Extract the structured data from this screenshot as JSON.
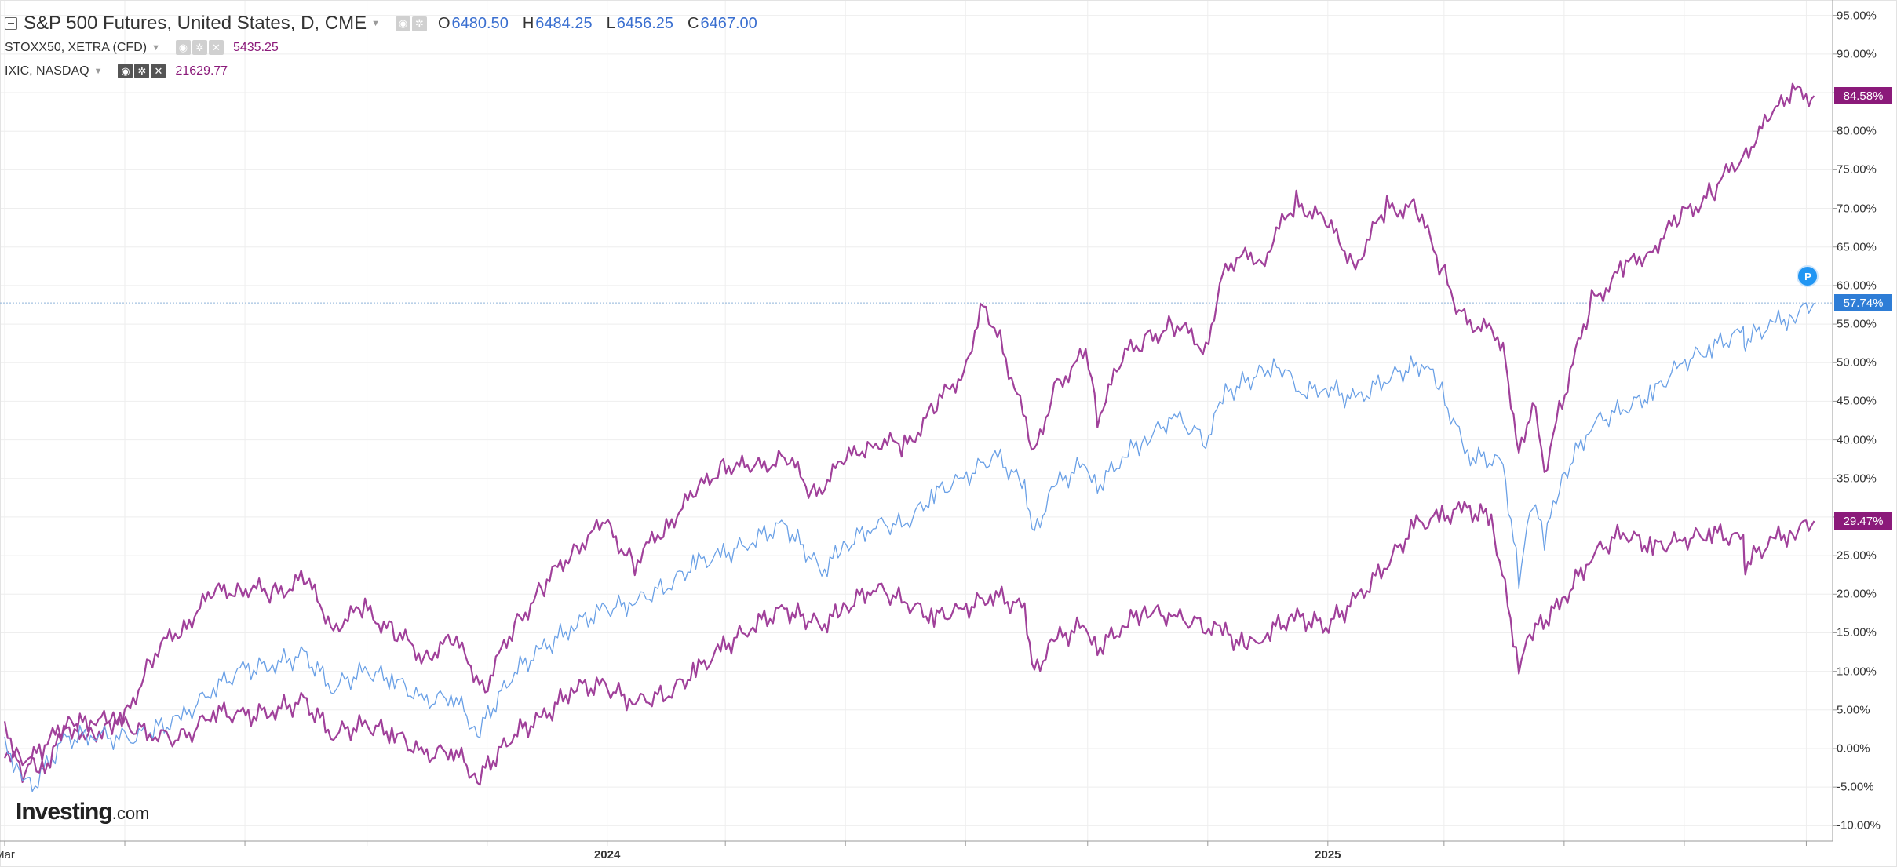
{
  "legend": {
    "main": {
      "name": "S&P 500 Futures, United States, D, CME",
      "ohlc": [
        {
          "k": "O",
          "v": "6480.50"
        },
        {
          "k": "H",
          "v": "6484.25"
        },
        {
          "k": "L",
          "v": "6456.25"
        },
        {
          "k": "C",
          "v": "6467.00"
        }
      ]
    },
    "overlays": [
      {
        "name": "STOXX50, XETRA (CFD)",
        "value": "5435.25"
      },
      {
        "name": "IXIC, NASDAQ",
        "value": "21629.77"
      }
    ]
  },
  "logo": {
    "name": "Investing",
    "suffix": ".com"
  },
  "badge": {
    "label": "P"
  },
  "price_tags": [
    {
      "text": "84.58%",
      "value": 84.58,
      "color": "#8b1a7a"
    },
    {
      "text": "57.74%",
      "value": 57.74,
      "color": "#2e7dd6"
    },
    {
      "text": "29.47%",
      "value": 29.47,
      "color": "#8b1a7a"
    }
  ],
  "colors": {
    "sp500": "#6aa0e6",
    "ixic": "#a0409a",
    "stoxx": "#a0409a",
    "grid": "#eeeeee",
    "axis": "#9a9a9a",
    "hline": "#8fb3d9"
  },
  "chart_data": {
    "type": "line",
    "y_axis_unit": "%",
    "ylim": [
      -12,
      97
    ],
    "y_ticks": [
      "95.00%",
      "90.00%",
      "85.00%",
      "80.00%",
      "75.00%",
      "70.00%",
      "65.00%",
      "60.00%",
      "55.00%",
      "50.00%",
      "45.00%",
      "40.00%",
      "35.00%",
      "30.00%",
      "25.00%",
      "20.00%",
      "15.00%",
      "10.00%",
      "5.00%",
      "0.00%",
      "-5.00%",
      "-10.00%"
    ],
    "y_tick_values": [
      95,
      90,
      85,
      80,
      75,
      70,
      65,
      60,
      55,
      50,
      45,
      40,
      35,
      30,
      25,
      20,
      15,
      10,
      5,
      0,
      -5,
      -10
    ],
    "x_range": [
      "2023-03-01",
      "2025-09-08"
    ],
    "x_tick_labels": [
      {
        "label": "Mar",
        "date": "2023-03-01",
        "bold": false
      },
      {
        "label": "2024",
        "date": "2024-01-01",
        "bold": true
      },
      {
        "label": "2025",
        "date": "2025-01-01",
        "bold": true
      }
    ],
    "x_minor_ticks": [
      "2023-05-01",
      "2023-07-01",
      "2023-09-01",
      "2023-11-01",
      "2024-03-01",
      "2024-05-01",
      "2024-07-01",
      "2024-09-01",
      "2024-11-01",
      "2025-03-01",
      "2025-05-01",
      "2025-07-01",
      "2025-09-01"
    ],
    "horizontal_line": 57.74,
    "series": [
      {
        "name": "IXIC, NASDAQ",
        "key": "ixic",
        "points": [
          [
            "2023-03-01",
            0
          ],
          [
            "2023-03-10",
            -3
          ],
          [
            "2023-03-20",
            0
          ],
          [
            "2023-04-01",
            3
          ],
          [
            "2023-04-15",
            2
          ],
          [
            "2023-05-01",
            4
          ],
          [
            "2023-05-15",
            12
          ],
          [
            "2023-05-31",
            16
          ],
          [
            "2023-06-15",
            20
          ],
          [
            "2023-06-30",
            21
          ],
          [
            "2023-07-15",
            20
          ],
          [
            "2023-07-31",
            22
          ],
          [
            "2023-08-15",
            16
          ],
          [
            "2023-08-31",
            18
          ],
          [
            "2023-09-15",
            15
          ],
          [
            "2023-09-30",
            12
          ],
          [
            "2023-10-15",
            14
          ],
          [
            "2023-10-31",
            8
          ],
          [
            "2023-11-15",
            16
          ],
          [
            "2023-11-30",
            21
          ],
          [
            "2023-12-15",
            26
          ],
          [
            "2023-12-31",
            29
          ],
          [
            "2024-01-15",
            24
          ],
          [
            "2024-01-31",
            29
          ],
          [
            "2024-02-15",
            33
          ],
          [
            "2024-02-29",
            37
          ],
          [
            "2024-03-15",
            36
          ],
          [
            "2024-03-31",
            38
          ],
          [
            "2024-04-15",
            33
          ],
          [
            "2024-04-30",
            37
          ],
          [
            "2024-05-15",
            40
          ],
          [
            "2024-05-31",
            39
          ],
          [
            "2024-06-15",
            44
          ],
          [
            "2024-06-30",
            49
          ],
          [
            "2024-07-10",
            58
          ],
          [
            "2024-07-20",
            52
          ],
          [
            "2024-08-05",
            38
          ],
          [
            "2024-08-15",
            47
          ],
          [
            "2024-08-31",
            51
          ],
          [
            "2024-09-06",
            43
          ],
          [
            "2024-09-20",
            51
          ],
          [
            "2024-09-30",
            53
          ],
          [
            "2024-10-15",
            55
          ],
          [
            "2024-10-31",
            52
          ],
          [
            "2024-11-10",
            63
          ],
          [
            "2024-11-30",
            64
          ],
          [
            "2024-12-16",
            71
          ],
          [
            "2024-12-31",
            68
          ],
          [
            "2025-01-15",
            63
          ],
          [
            "2025-01-31",
            70
          ],
          [
            "2025-02-15",
            70
          ],
          [
            "2025-02-28",
            62
          ],
          [
            "2025-03-10",
            56
          ],
          [
            "2025-03-31",
            53
          ],
          [
            "2025-04-08",
            38
          ],
          [
            "2025-04-15",
            45
          ],
          [
            "2025-04-21",
            36
          ],
          [
            "2025-04-30",
            45
          ],
          [
            "2025-05-15",
            58
          ],
          [
            "2025-05-31",
            62
          ],
          [
            "2025-06-15",
            65
          ],
          [
            "2025-06-30",
            69
          ],
          [
            "2025-07-15",
            72
          ],
          [
            "2025-07-31",
            77
          ],
          [
            "2025-08-15",
            82
          ],
          [
            "2025-08-25",
            85
          ],
          [
            "2025-09-05",
            84.58
          ]
        ]
      },
      {
        "name": "S&P 500 Futures, United States, D, CME",
        "key": "sp500",
        "points": [
          [
            "2023-03-01",
            0
          ],
          [
            "2023-03-10",
            -3
          ],
          [
            "2023-03-15",
            -5
          ],
          [
            "2023-03-31",
            1
          ],
          [
            "2023-04-15",
            2
          ],
          [
            "2023-05-01",
            1
          ],
          [
            "2023-05-31",
            4
          ],
          [
            "2023-06-15",
            8
          ],
          [
            "2023-06-30",
            10
          ],
          [
            "2023-07-15",
            11
          ],
          [
            "2023-07-31",
            12
          ],
          [
            "2023-08-15",
            8
          ],
          [
            "2023-08-31",
            10
          ],
          [
            "2023-09-15",
            9
          ],
          [
            "2023-09-30",
            6
          ],
          [
            "2023-10-15",
            7
          ],
          [
            "2023-10-27",
            2
          ],
          [
            "2023-11-15",
            10
          ],
          [
            "2023-11-30",
            13
          ],
          [
            "2023-12-15",
            16
          ],
          [
            "2023-12-31",
            18
          ],
          [
            "2024-01-15",
            19
          ],
          [
            "2024-01-31",
            21
          ],
          [
            "2024-02-15",
            24
          ],
          [
            "2024-02-29",
            25
          ],
          [
            "2024-03-15",
            27
          ],
          [
            "2024-03-31",
            29
          ],
          [
            "2024-04-19",
            23
          ],
          [
            "2024-04-30",
            26
          ],
          [
            "2024-05-15",
            29
          ],
          [
            "2024-05-31",
            29
          ],
          [
            "2024-06-15",
            33
          ],
          [
            "2024-06-30",
            35
          ],
          [
            "2024-07-16",
            38
          ],
          [
            "2024-07-31",
            34
          ],
          [
            "2024-08-05",
            28
          ],
          [
            "2024-08-15",
            34
          ],
          [
            "2024-08-31",
            37
          ],
          [
            "2024-09-06",
            34
          ],
          [
            "2024-09-20",
            38
          ],
          [
            "2024-09-30",
            40
          ],
          [
            "2024-10-15",
            43
          ],
          [
            "2024-10-31",
            40
          ],
          [
            "2024-11-10",
            46
          ],
          [
            "2024-11-30",
            49
          ],
          [
            "2024-12-06",
            50
          ],
          [
            "2024-12-20",
            46
          ],
          [
            "2024-12-31",
            47
          ],
          [
            "2025-01-15",
            45
          ],
          [
            "2025-01-31",
            48
          ],
          [
            "2025-02-19",
            50
          ],
          [
            "2025-02-28",
            46
          ],
          [
            "2025-03-13",
            38
          ],
          [
            "2025-03-31",
            37
          ],
          [
            "2025-04-08",
            22
          ],
          [
            "2025-04-15",
            32
          ],
          [
            "2025-04-21",
            27
          ],
          [
            "2025-04-30",
            35
          ],
          [
            "2025-05-15",
            42
          ],
          [
            "2025-05-31",
            44
          ],
          [
            "2025-06-15",
            46
          ],
          [
            "2025-06-30",
            50
          ],
          [
            "2025-07-15",
            52
          ],
          [
            "2025-07-31",
            54
          ],
          [
            "2025-08-01",
            53
          ],
          [
            "2025-08-15",
            55
          ],
          [
            "2025-08-25",
            56
          ],
          [
            "2025-09-05",
            57.74
          ]
        ]
      },
      {
        "name": "STOXX50, XETRA (CFD)",
        "key": "stoxx",
        "points": [
          [
            "2023-03-01",
            2
          ],
          [
            "2023-03-10",
            -1
          ],
          [
            "2023-03-20",
            -3
          ],
          [
            "2023-03-31",
            2
          ],
          [
            "2023-04-15",
            4
          ],
          [
            "2023-04-30",
            3
          ],
          [
            "2023-05-15",
            2
          ],
          [
            "2023-05-31",
            1
          ],
          [
            "2023-06-15",
            5
          ],
          [
            "2023-06-30",
            4
          ],
          [
            "2023-07-15",
            5
          ],
          [
            "2023-07-31",
            6
          ],
          [
            "2023-08-15",
            2
          ],
          [
            "2023-08-31",
            3
          ],
          [
            "2023-09-15",
            2
          ],
          [
            "2023-09-30",
            -1
          ],
          [
            "2023-10-15",
            0
          ],
          [
            "2023-10-27",
            -4
          ],
          [
            "2023-11-15",
            2
          ],
          [
            "2023-11-30",
            4
          ],
          [
            "2023-12-15",
            8
          ],
          [
            "2023-12-31",
            8
          ],
          [
            "2024-01-15",
            6
          ],
          [
            "2024-01-31",
            7
          ],
          [
            "2024-02-15",
            10
          ],
          [
            "2024-02-29",
            13
          ],
          [
            "2024-03-15",
            16
          ],
          [
            "2024-03-31",
            18
          ],
          [
            "2024-04-19",
            16
          ],
          [
            "2024-04-30",
            18
          ],
          [
            "2024-05-15",
            21
          ],
          [
            "2024-05-31",
            19
          ],
          [
            "2024-06-15",
            17
          ],
          [
            "2024-06-30",
            18
          ],
          [
            "2024-07-15",
            20
          ],
          [
            "2024-07-31",
            18
          ],
          [
            "2024-08-05",
            10
          ],
          [
            "2024-08-15",
            14
          ],
          [
            "2024-08-31",
            16
          ],
          [
            "2024-09-06",
            13
          ],
          [
            "2024-09-20",
            16
          ],
          [
            "2024-09-30",
            18
          ],
          [
            "2024-10-15",
            17
          ],
          [
            "2024-10-31",
            16
          ],
          [
            "2024-11-10",
            15
          ],
          [
            "2024-11-21",
            13
          ],
          [
            "2024-11-30",
            15
          ],
          [
            "2024-12-15",
            17
          ],
          [
            "2024-12-31",
            16
          ],
          [
            "2025-01-15",
            19
          ],
          [
            "2025-01-31",
            24
          ],
          [
            "2025-02-15",
            29
          ],
          [
            "2025-02-28",
            30
          ],
          [
            "2025-03-10",
            31
          ],
          [
            "2025-03-25",
            30
          ],
          [
            "2025-04-08",
            11
          ],
          [
            "2025-04-15",
            15
          ],
          [
            "2025-04-30",
            19
          ],
          [
            "2025-05-15",
            25
          ],
          [
            "2025-05-31",
            28
          ],
          [
            "2025-06-15",
            26
          ],
          [
            "2025-06-30",
            27
          ],
          [
            "2025-07-15",
            28
          ],
          [
            "2025-07-31",
            27
          ],
          [
            "2025-08-01",
            24
          ],
          [
            "2025-08-15",
            27
          ],
          [
            "2025-08-25",
            28
          ],
          [
            "2025-09-05",
            29.47
          ]
        ]
      }
    ]
  }
}
